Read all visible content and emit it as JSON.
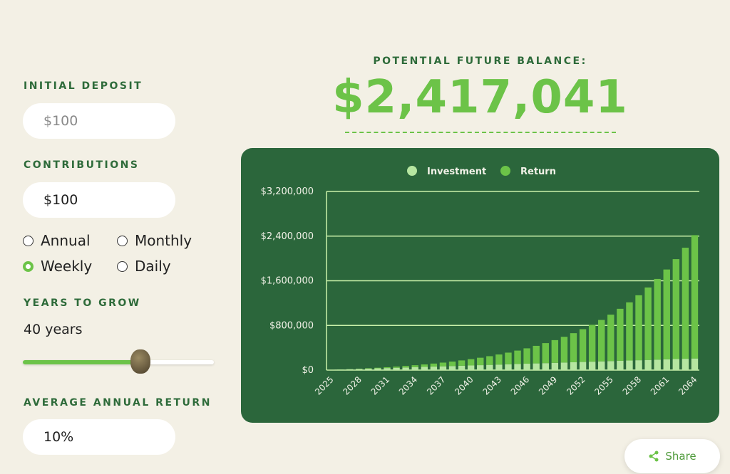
{
  "header": {
    "title": "POTENTIAL FUTURE BALANCE:",
    "balance": "$2,417,041"
  },
  "form": {
    "initial_deposit": {
      "label": "INITIAL DEPOSIT",
      "value": "$100"
    },
    "contributions": {
      "label": "CONTRIBUTIONS",
      "value": "$100"
    },
    "frequency": {
      "options": [
        {
          "label": "Annual",
          "selected": false
        },
        {
          "label": "Monthly",
          "selected": false
        },
        {
          "label": "Weekly",
          "selected": true
        },
        {
          "label": "Daily",
          "selected": false
        }
      ]
    },
    "years": {
      "label": "YEARS TO GROW",
      "value": "40 years"
    },
    "annual_return": {
      "label": "AVERAGE ANNUAL RETURN",
      "value": "10%"
    }
  },
  "share": "Share",
  "chart_data": {
    "type": "stacked_bar",
    "categories": [
      "2025",
      null,
      null,
      "2028",
      null,
      null,
      "2031",
      null,
      null,
      "2034",
      null,
      null,
      "2037",
      null,
      null,
      "2040",
      null,
      null,
      "2043",
      null,
      null,
      "2046",
      null,
      null,
      "2049",
      null,
      null,
      "2052",
      null,
      null,
      "2055",
      null,
      null,
      "2058",
      null,
      null,
      "2061",
      null,
      null,
      "2064"
    ],
    "series": [
      {
        "name": "Investment",
        "color": "#b6e6a1",
        "values": [
          5300,
          10500,
          15700,
          20900,
          26100,
          31300,
          36500,
          41700,
          46900,
          52100,
          57300,
          62500,
          67700,
          72900,
          78100,
          83300,
          88500,
          93700,
          98900,
          104100,
          109300,
          114500,
          119700,
          124900,
          130100,
          135300,
          140500,
          145700,
          150900,
          156100,
          161300,
          166500,
          171700,
          176900,
          182100,
          187300,
          192500,
          197700,
          202900,
          208100
        ]
      },
      {
        "name": "Return",
        "color": "#6cc348",
        "values": [
          260,
          1065,
          2471,
          4538,
          7331,
          10924,
          15396,
          20835,
          27339,
          35012,
          43972,
          54350,
          66284,
          79932,
          95465,
          113071,
          132958,
          155353,
          180509,
          208699,
          240228,
          275430,
          314673,
          358360,
          406935,
          460892,
          520757,
          587132,
          660666,
          742072,
          832138,
          931731,
          1041805,
          1163406,
          1297684,
          1445919,
          1609483,
          1789931,
          1988944,
          2208941
        ]
      }
    ],
    "ylim": [
      0,
      3200000
    ],
    "yticks": [
      {
        "value": 0,
        "label": "$0"
      },
      {
        "value": 800000,
        "label": "$800,000"
      },
      {
        "value": 1600000,
        "label": "$1,600,000"
      },
      {
        "value": 2400000,
        "label": "$2,400,000"
      },
      {
        "value": 3200000,
        "label": "$3,200,000"
      }
    ],
    "grid": true,
    "legend": "top"
  }
}
